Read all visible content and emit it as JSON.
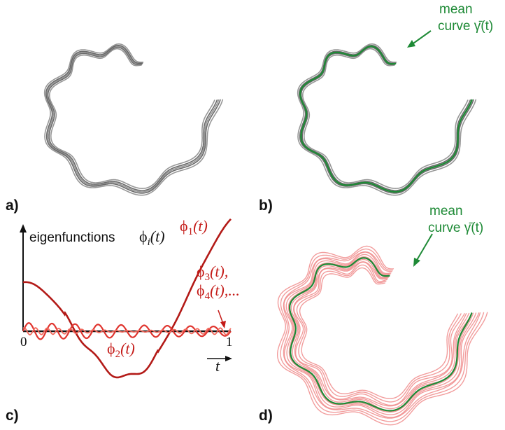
{
  "panels": {
    "a": {
      "label": "a)"
    },
    "b": {
      "label": "b)",
      "annotation": {
        "line1": "mean",
        "line2": "curve γ̄(t)"
      }
    },
    "c": {
      "label": "c)",
      "title_text": "eigenfunctions",
      "title_math": "ϕ",
      "title_sub": "i",
      "title_arg": "(t)",
      "phi1": {
        "sym": "ϕ",
        "sub": "1",
        "arg": "(t)"
      },
      "phi2": {
        "sym": "ϕ",
        "sub": "2",
        "arg": "(t)"
      },
      "phi3": {
        "sym": "ϕ",
        "sub": "3",
        "arg": "(t),"
      },
      "phi4": {
        "sym": "ϕ",
        "sub": "4",
        "arg": "(t),..."
      },
      "tick_0": "0",
      "tick_1": "1",
      "t_label": "t"
    },
    "d": {
      "label": "d)",
      "annotation": {
        "line1": "mean",
        "line2": "curve γ̄(t)"
      }
    }
  },
  "colors": {
    "gray_curve": "#8c8c8c",
    "dark_gray_curve": "#5a5a5a",
    "mean_green": "#1e8a36",
    "red_curve": "#b31a17",
    "pink_curve": "#f08c8c"
  }
}
